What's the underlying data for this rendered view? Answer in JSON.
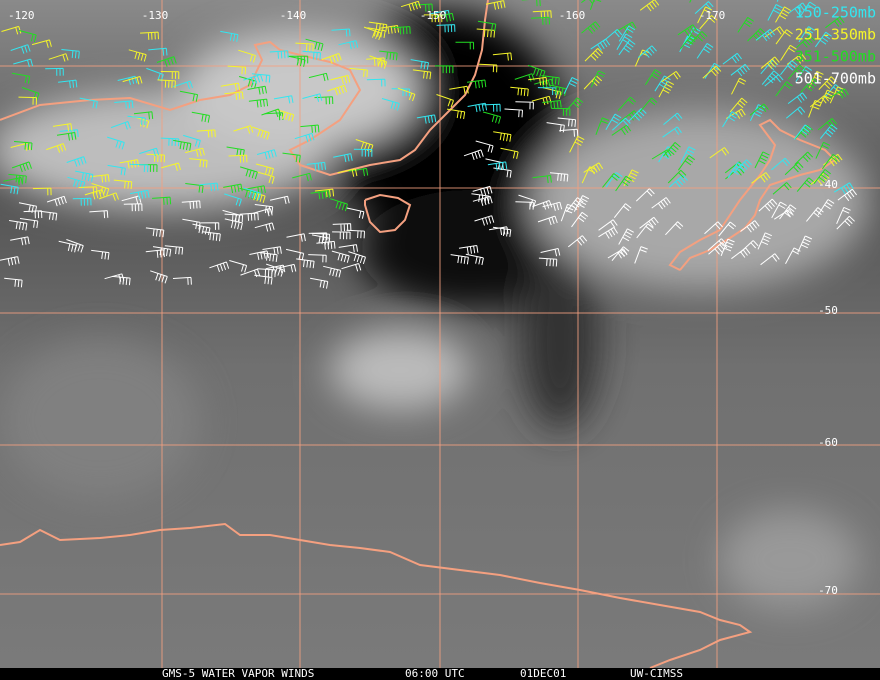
{
  "map": {
    "longitude_labels": [
      "-120",
      "-130",
      "-140",
      "-150",
      "-160",
      "-170"
    ],
    "latitude_labels": [
      "-40",
      "-50",
      "-60",
      "-70"
    ],
    "legend": [
      {
        "label": "150-250mb",
        "color": "#33e6f0"
      },
      {
        "label": "251-350mb",
        "color": "#f5f52a"
      },
      {
        "label": "351-500mb",
        "color": "#22dd22"
      },
      {
        "label": "501-700mb",
        "color": "#ffffff"
      }
    ],
    "footer": [
      "GMS-5 WATER VAPOR WINDS",
      "06:00 UTC",
      "01DEC01",
      "UW-CIMSS"
    ]
  }
}
